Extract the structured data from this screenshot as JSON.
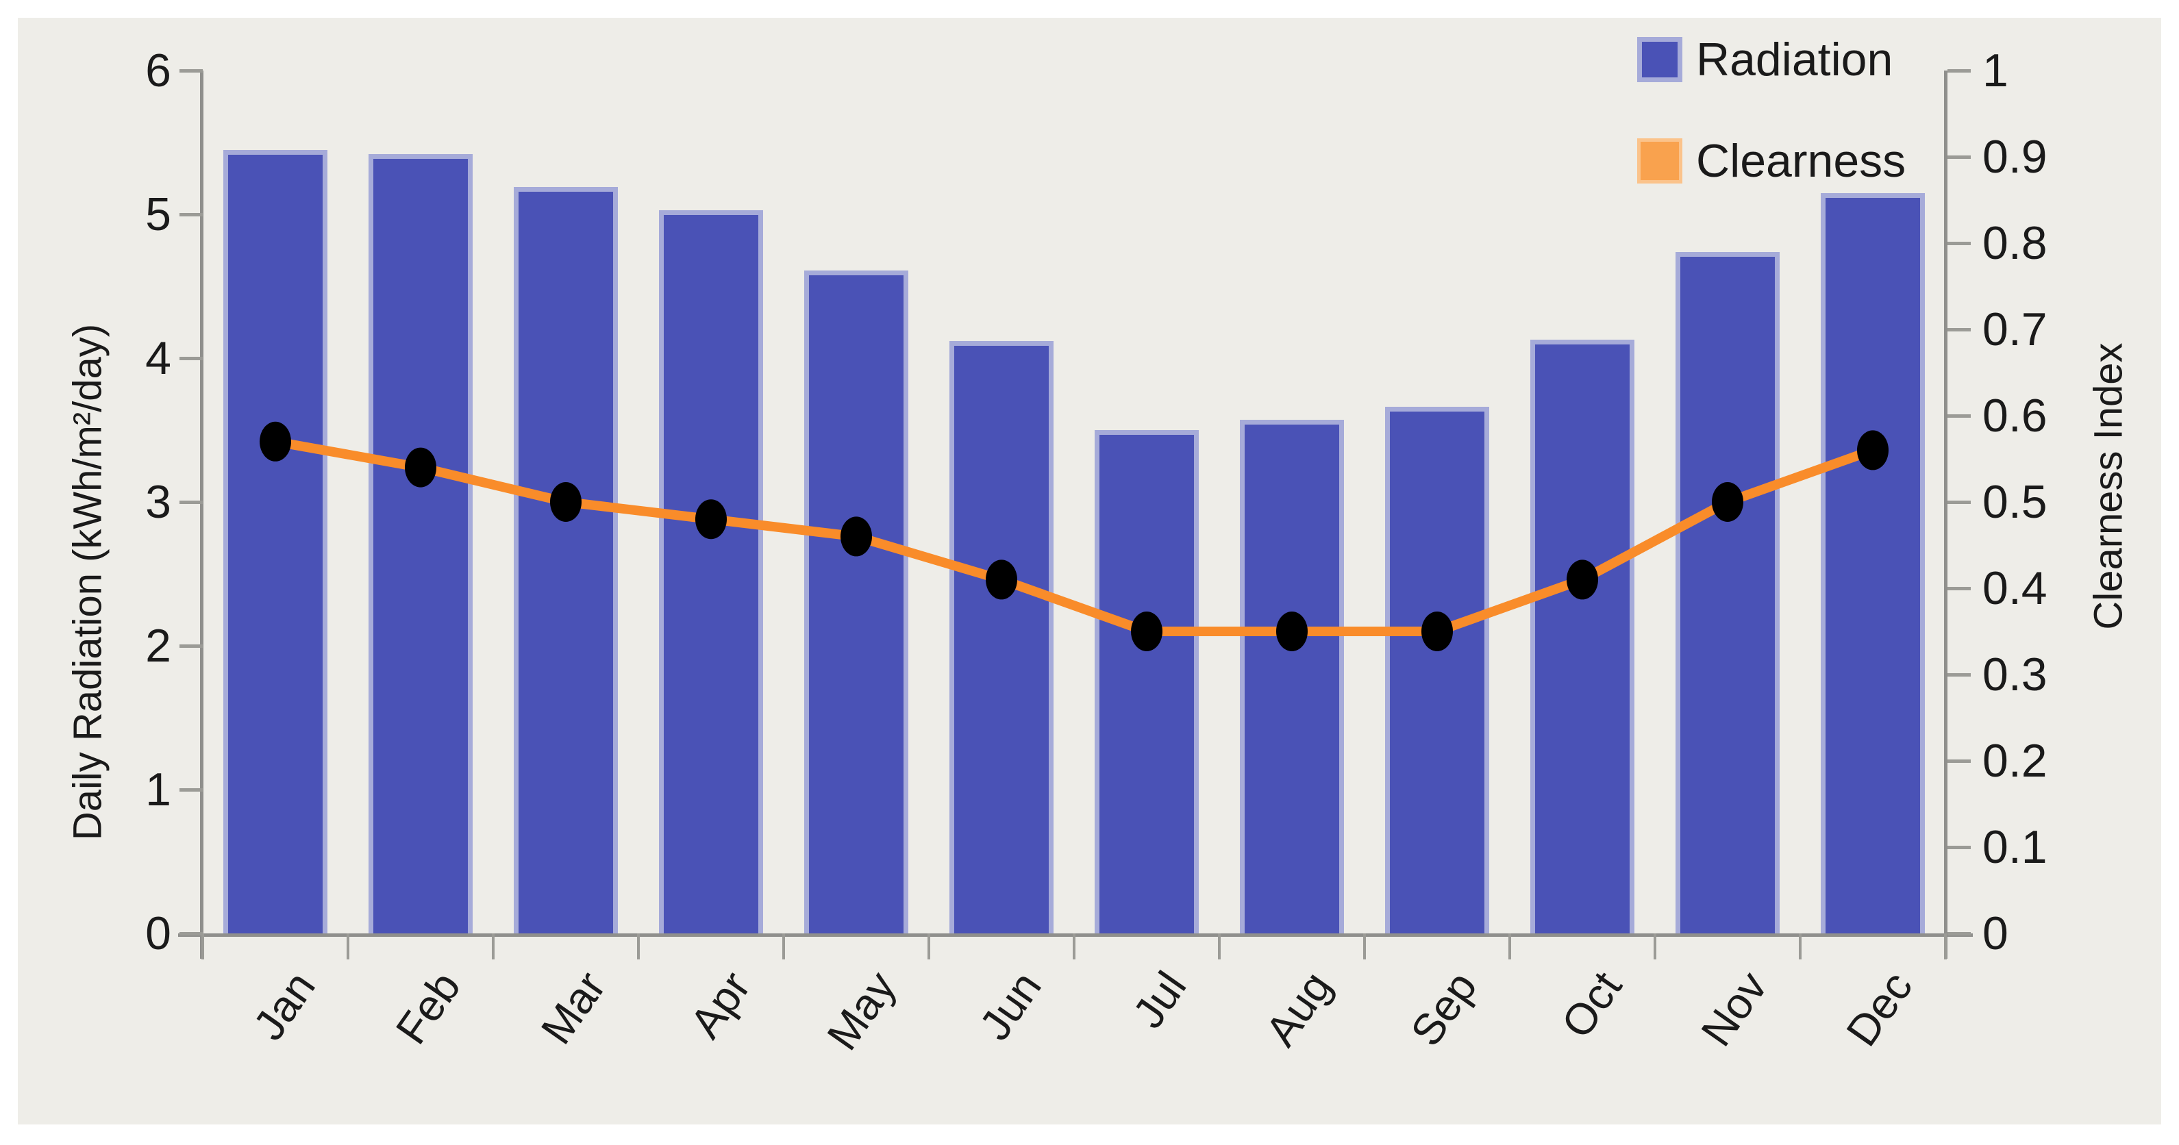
{
  "chart_data": {
    "type": "bar",
    "subtype": "bar-line-combo",
    "categories": [
      "Jan",
      "Feb",
      "Mar",
      "Apr",
      "May",
      "Jun",
      "Jul",
      "Aug",
      "Sep",
      "Oct",
      "Nov",
      "Dec"
    ],
    "series": [
      {
        "name": "Radiation",
        "type": "bar",
        "axis": "left",
        "color": "#4a52b6",
        "edge_color": "#a6abd9",
        "values": [
          5.45,
          5.42,
          5.19,
          5.03,
          4.61,
          4.12,
          3.5,
          3.57,
          3.66,
          4.13,
          4.74,
          5.15
        ]
      },
      {
        "name": "Clearness",
        "type": "line",
        "axis": "right",
        "color": "#f98c2a",
        "marker_color": "#000000",
        "values": [
          0.57,
          0.54,
          0.5,
          0.48,
          0.46,
          0.41,
          0.35,
          0.35,
          0.35,
          0.41,
          0.5,
          0.56
        ]
      }
    ],
    "left_axis": {
      "title": "Daily Radiation (kWh/m²/day)",
      "min": 0,
      "max": 6,
      "step": 1
    },
    "right_axis": {
      "title": "Clearness Index",
      "min": 0,
      "max": 1,
      "step": 0.1
    },
    "legend": [
      {
        "label": "Radiation",
        "swatch": "#4a52b6"
      },
      {
        "label": "Clearness",
        "swatch": "#f9a24e"
      }
    ],
    "grid": "off",
    "legend_position": "top-right-inside"
  },
  "colors": {
    "page_bg": "#ffffff",
    "panel_bg": "#eeede8",
    "axis_line": "#8f8f8c",
    "tick": "#9b9b96",
    "text": "#1a1a1a"
  }
}
